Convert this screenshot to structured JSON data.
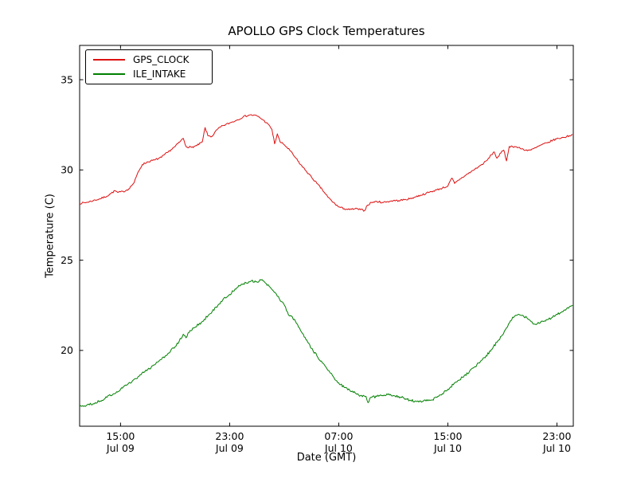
{
  "chart_data": {
    "type": "line",
    "title": "APOLLO GPS Clock Temperatures",
    "xlabel": "Date (GMT)",
    "ylabel": "Temperature (C)",
    "grid": false,
    "legend_position": "upper left",
    "xlim": [
      0,
      36.2
    ],
    "ylim": [
      15.8,
      36.9
    ],
    "x_units": "hours from ~12:00 Jul 09 GMT",
    "yticks": [
      {
        "value": 20,
        "label": "20"
      },
      {
        "value": 25,
        "label": "25"
      },
      {
        "value": 30,
        "label": "30"
      },
      {
        "value": 35,
        "label": "35"
      }
    ],
    "xticks": [
      {
        "value": 3,
        "time": "15:00",
        "date": "Jul 09"
      },
      {
        "value": 11,
        "time": "23:00",
        "date": "Jul 09"
      },
      {
        "value": 19,
        "time": "07:00",
        "date": "Jul 10"
      },
      {
        "value": 27,
        "time": "15:00",
        "date": "Jul 10"
      },
      {
        "value": 35,
        "time": "23:00",
        "date": "Jul 10"
      }
    ],
    "series": [
      {
        "name": "GPS_CLOCK",
        "color": "#dd1111",
        "jitter": 0.05,
        "points": [
          [
            0,
            28.15
          ],
          [
            0.5,
            28.2
          ],
          [
            1,
            28.3
          ],
          [
            1.5,
            28.4
          ],
          [
            2,
            28.55
          ],
          [
            2.3,
            28.7
          ],
          [
            2.6,
            28.85
          ],
          [
            2.8,
            28.75
          ],
          [
            3.2,
            28.8
          ],
          [
            3.6,
            28.95
          ],
          [
            4,
            29.3
          ],
          [
            4.3,
            29.9
          ],
          [
            4.6,
            30.3
          ],
          [
            5,
            30.45
          ],
          [
            5.5,
            30.55
          ],
          [
            6,
            30.7
          ],
          [
            6.5,
            31.0
          ],
          [
            7,
            31.3
          ],
          [
            7.4,
            31.6
          ],
          [
            7.6,
            31.75
          ],
          [
            7.8,
            31.3
          ],
          [
            8.2,
            31.25
          ],
          [
            8.6,
            31.35
          ],
          [
            9,
            31.55
          ],
          [
            9.2,
            32.35
          ],
          [
            9.4,
            31.9
          ],
          [
            9.7,
            31.85
          ],
          [
            10.1,
            32.25
          ],
          [
            10.5,
            32.45
          ],
          [
            11,
            32.6
          ],
          [
            11.5,
            32.75
          ],
          [
            12,
            32.95
          ],
          [
            12.5,
            33.05
          ],
          [
            13,
            33.0
          ],
          [
            13.4,
            32.8
          ],
          [
            13.8,
            32.55
          ],
          [
            14.1,
            32.25
          ],
          [
            14.3,
            31.45
          ],
          [
            14.5,
            32.0
          ],
          [
            14.7,
            31.55
          ],
          [
            15,
            31.4
          ],
          [
            15.4,
            31.1
          ],
          [
            15.8,
            30.7
          ],
          [
            16.2,
            30.3
          ],
          [
            16.6,
            29.95
          ],
          [
            17,
            29.6
          ],
          [
            17.4,
            29.25
          ],
          [
            17.8,
            28.9
          ],
          [
            18.2,
            28.5
          ],
          [
            18.6,
            28.2
          ],
          [
            19,
            27.95
          ],
          [
            19.4,
            27.85
          ],
          [
            19.8,
            27.8
          ],
          [
            20.2,
            27.85
          ],
          [
            20.6,
            27.8
          ],
          [
            20.9,
            27.75
          ],
          [
            21.1,
            28.05
          ],
          [
            21.4,
            28.2
          ],
          [
            21.8,
            28.25
          ],
          [
            22.2,
            28.2
          ],
          [
            22.6,
            28.25
          ],
          [
            23,
            28.3
          ],
          [
            23.4,
            28.3
          ],
          [
            23.8,
            28.35
          ],
          [
            24.2,
            28.4
          ],
          [
            24.6,
            28.5
          ],
          [
            25,
            28.6
          ],
          [
            25.4,
            28.7
          ],
          [
            25.8,
            28.8
          ],
          [
            26.2,
            28.9
          ],
          [
            26.6,
            29.0
          ],
          [
            27,
            29.1
          ],
          [
            27.3,
            29.55
          ],
          [
            27.5,
            29.25
          ],
          [
            27.9,
            29.5
          ],
          [
            28.3,
            29.7
          ],
          [
            28.7,
            29.9
          ],
          [
            29.1,
            30.1
          ],
          [
            29.5,
            30.3
          ],
          [
            29.9,
            30.55
          ],
          [
            30.2,
            30.85
          ],
          [
            30.4,
            31.0
          ],
          [
            30.6,
            30.65
          ],
          [
            30.9,
            30.95
          ],
          [
            31.1,
            31.1
          ],
          [
            31.3,
            30.5
          ],
          [
            31.5,
            31.3
          ],
          [
            31.9,
            31.3
          ],
          [
            32.3,
            31.2
          ],
          [
            32.7,
            31.1
          ],
          [
            33.1,
            31.1
          ],
          [
            33.5,
            31.25
          ],
          [
            33.9,
            31.4
          ],
          [
            34.3,
            31.5
          ],
          [
            34.7,
            31.65
          ],
          [
            35.1,
            31.75
          ],
          [
            35.5,
            31.8
          ],
          [
            35.9,
            31.9
          ],
          [
            36.15,
            31.95
          ]
        ]
      },
      {
        "name": "ILE_INTAKE",
        "color": "#008000",
        "jitter": 0.07,
        "points": [
          [
            0,
            16.9
          ],
          [
            0.5,
            16.95
          ],
          [
            1,
            17.05
          ],
          [
            1.5,
            17.2
          ],
          [
            2,
            17.4
          ],
          [
            2.5,
            17.6
          ],
          [
            3,
            17.85
          ],
          [
            3.5,
            18.1
          ],
          [
            4,
            18.4
          ],
          [
            4.5,
            18.65
          ],
          [
            5,
            18.95
          ],
          [
            5.5,
            19.2
          ],
          [
            6,
            19.5
          ],
          [
            6.5,
            19.85
          ],
          [
            7,
            20.2
          ],
          [
            7.3,
            20.5
          ],
          [
            7.6,
            20.9
          ],
          [
            7.8,
            20.7
          ],
          [
            8.1,
            21.1
          ],
          [
            8.5,
            21.3
          ],
          [
            9,
            21.6
          ],
          [
            9.5,
            22.0
          ],
          [
            10,
            22.4
          ],
          [
            10.5,
            22.8
          ],
          [
            11,
            23.1
          ],
          [
            11.4,
            23.4
          ],
          [
            11.8,
            23.6
          ],
          [
            12.2,
            23.75
          ],
          [
            12.6,
            23.85
          ],
          [
            13,
            23.8
          ],
          [
            13.3,
            23.9
          ],
          [
            13.6,
            23.75
          ],
          [
            13.9,
            23.55
          ],
          [
            14.2,
            23.3
          ],
          [
            14.5,
            23.0
          ],
          [
            14.8,
            22.7
          ],
          [
            15.1,
            22.4
          ],
          [
            15.3,
            22.0
          ],
          [
            15.6,
            21.85
          ],
          [
            15.9,
            21.5
          ],
          [
            16.2,
            21.1
          ],
          [
            16.6,
            20.6
          ],
          [
            17,
            20.1
          ],
          [
            17.4,
            19.7
          ],
          [
            17.8,
            19.3
          ],
          [
            18.2,
            18.9
          ],
          [
            18.6,
            18.55
          ],
          [
            19,
            18.2
          ],
          [
            19.4,
            17.95
          ],
          [
            19.8,
            17.8
          ],
          [
            20.2,
            17.65
          ],
          [
            20.6,
            17.5
          ],
          [
            21,
            17.45
          ],
          [
            21.15,
            17.1
          ],
          [
            21.35,
            17.4
          ],
          [
            21.8,
            17.45
          ],
          [
            22.2,
            17.5
          ],
          [
            22.6,
            17.55
          ],
          [
            23,
            17.5
          ],
          [
            23.4,
            17.45
          ],
          [
            23.8,
            17.35
          ],
          [
            24.2,
            17.25
          ],
          [
            24.6,
            17.2
          ],
          [
            25,
            17.2
          ],
          [
            25.4,
            17.2
          ],
          [
            25.8,
            17.25
          ],
          [
            26.2,
            17.4
          ],
          [
            26.6,
            17.6
          ],
          [
            27,
            17.85
          ],
          [
            27.4,
            18.1
          ],
          [
            27.8,
            18.35
          ],
          [
            28.2,
            18.6
          ],
          [
            28.6,
            18.85
          ],
          [
            29,
            19.1
          ],
          [
            29.4,
            19.4
          ],
          [
            29.8,
            19.7
          ],
          [
            30.2,
            20.05
          ],
          [
            30.6,
            20.45
          ],
          [
            31,
            20.85
          ],
          [
            31.3,
            21.25
          ],
          [
            31.6,
            21.65
          ],
          [
            31.9,
            21.9
          ],
          [
            32.2,
            22.0
          ],
          [
            32.5,
            21.95
          ],
          [
            32.8,
            21.8
          ],
          [
            33.1,
            21.6
          ],
          [
            33.4,
            21.45
          ],
          [
            33.7,
            21.5
          ],
          [
            34,
            21.6
          ],
          [
            34.3,
            21.7
          ],
          [
            34.6,
            21.8
          ],
          [
            34.9,
            21.95
          ],
          [
            35.3,
            22.1
          ],
          [
            35.7,
            22.3
          ],
          [
            36,
            22.45
          ],
          [
            36.15,
            22.5
          ]
        ]
      }
    ]
  }
}
